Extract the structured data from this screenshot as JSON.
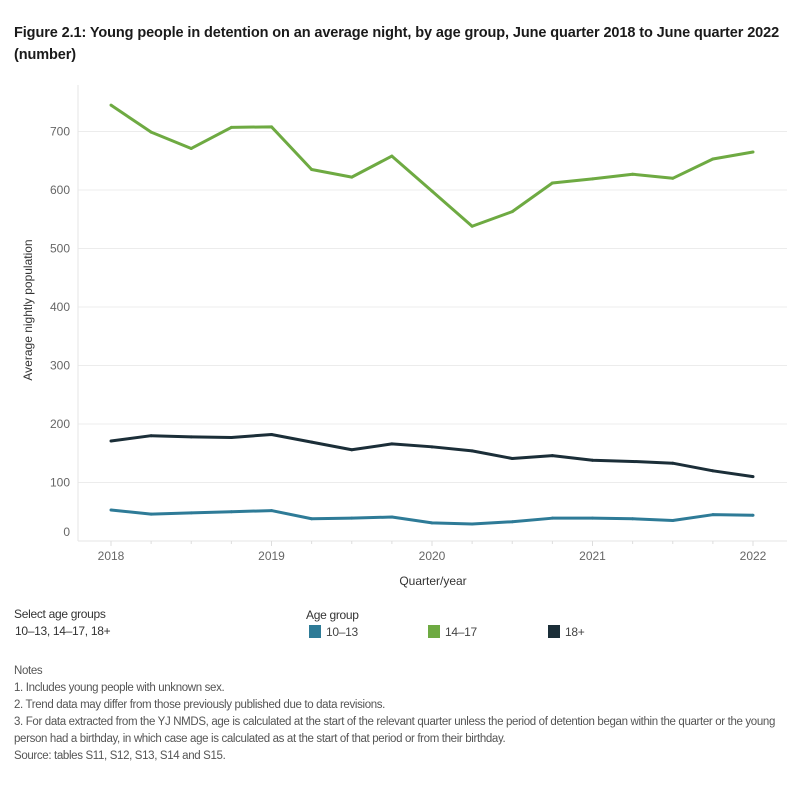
{
  "title": "Figure 2.1: Young people in detention on an average night, by age group, June quarter 2018 to June quarter 2022 (number)",
  "chart_data": {
    "type": "line",
    "xlabel": "Quarter/year",
    "ylabel": "Average nightly population",
    "x_tick_labels": [
      "2018",
      "2019",
      "2020",
      "2021",
      "2022"
    ],
    "y_tick_labels": [
      "0",
      "100",
      "200",
      "300",
      "400",
      "500",
      "600",
      "700"
    ],
    "ylim": [
      0,
      770
    ],
    "grid": true,
    "x": [
      "Jun 2018",
      "Sep 2018",
      "Dec 2018",
      "Mar 2019",
      "Jun 2019",
      "Sep 2019",
      "Dec 2019",
      "Mar 2020",
      "Jun 2020",
      "Sep 2020",
      "Dec 2020",
      "Mar 2021",
      "Jun 2021",
      "Sep 2021",
      "Dec 2021",
      "Mar 2022",
      "Jun 2022"
    ],
    "series": [
      {
        "name": "10–13",
        "color": "#2e7b97",
        "values": [
          53,
          46,
          48,
          50,
          52,
          38,
          39,
          41,
          31,
          29,
          33,
          39,
          39,
          38,
          35,
          45,
          44
        ]
      },
      {
        "name": "14–17",
        "color": "#6eaa42",
        "values": [
          745,
          699,
          671,
          707,
          708,
          635,
          622,
          658,
          598,
          538,
          563,
          612,
          619,
          627,
          620,
          653,
          665
        ]
      },
      {
        "name": "18+",
        "color": "#1b2e38",
        "values": [
          171,
          180,
          178,
          177,
          182,
          169,
          156,
          166,
          161,
          154,
          141,
          146,
          138,
          136,
          133,
          120,
          110
        ]
      }
    ]
  },
  "filter": {
    "label": "Select age groups",
    "value": "10–13, 14–17, 18+"
  },
  "legend": {
    "title": "Age group"
  },
  "notes": {
    "heading": "Notes",
    "items": [
      "1. Includes young people with unknown sex.",
      "2. Trend data may differ from those previously published due to data revisions.",
      "3. For data extracted from the YJ NMDS, age is calculated at the start of the relevant quarter  unless the period of detention began within the quarter or the young person had a birthday, in which case age is calculated as at the start of that period or from their birthday."
    ],
    "source": "Source: tables S11, S12, S13, S14 and S15."
  }
}
